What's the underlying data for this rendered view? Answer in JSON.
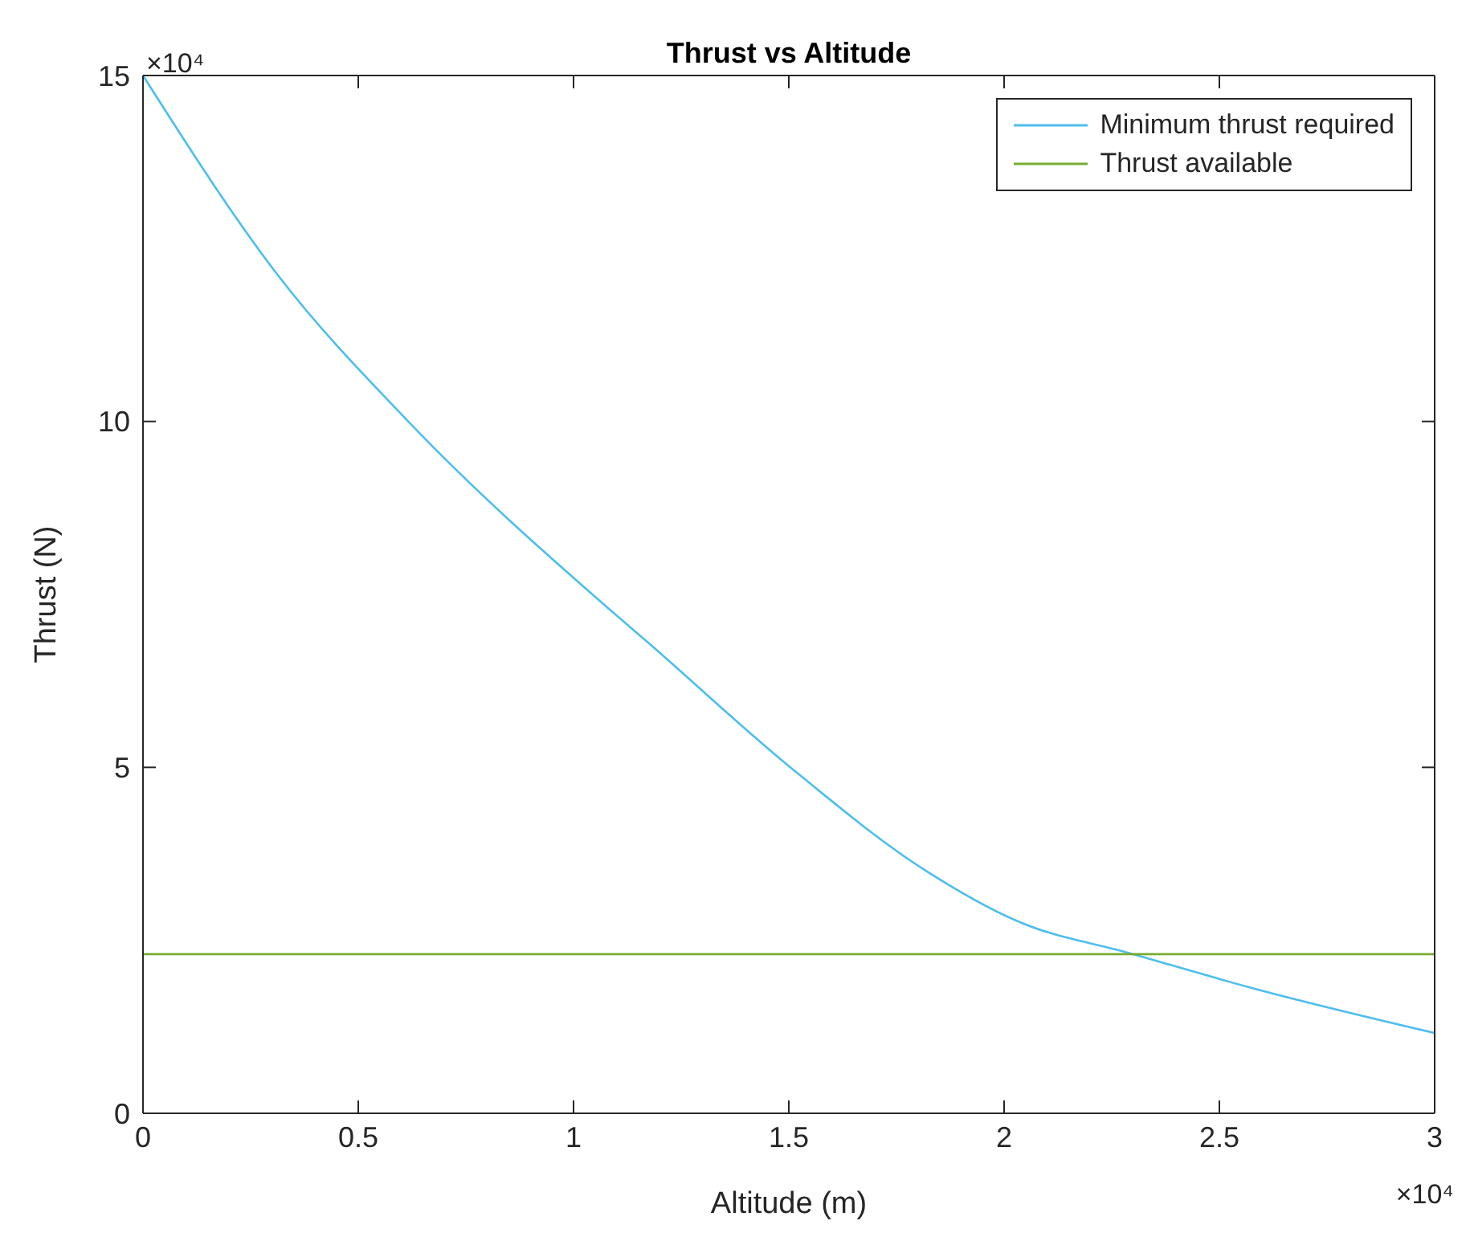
{
  "chart_data": {
    "type": "line",
    "title": "Thrust vs Altitude",
    "xlabel": "Altitude (m)",
    "ylabel": "Thrust (N)",
    "annotations": [
      "×10⁴",
      "×10⁴"
    ],
    "series": [
      {
        "name": "Minimum thrust required",
        "color": "#4dbeee",
        "x": [
          0,
          0.315,
          0.616,
          1.088,
          1.17,
          1.496,
          1.82,
          2.03,
          2.3,
          2.57,
          3
        ],
        "values": [
          15,
          12.1,
          10,
          7.26,
          6.82,
          5.04,
          3.5,
          2.78,
          2.3,
          1.82,
          1.16
        ]
      },
      {
        "name": "Thrust available",
        "color": "#77ac30",
        "x": [
          0,
          3
        ],
        "values": [
          2.3,
          2.3
        ]
      }
    ],
    "xlim": [
      0,
      3
    ],
    "xticks": [
      0,
      0.5,
      1,
      1.5,
      2,
      2.5,
      3
    ],
    "ylim": [
      0,
      15
    ],
    "yticks": [
      0,
      5,
      10,
      15
    ],
    "legend": "top right",
    "grid": false,
    "marker": "none",
    "line_style": "solid"
  }
}
